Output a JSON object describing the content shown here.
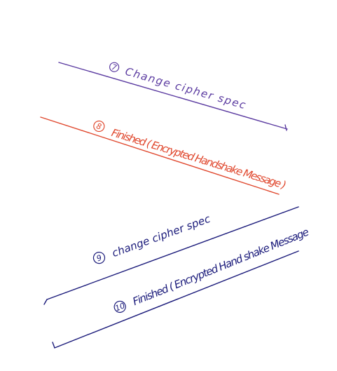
{
  "messages": [
    {
      "number": "7",
      "label": "Change cipher spec",
      "color": "#5a3aa0"
    },
    {
      "number": "8",
      "label": "Finished ( Encrypted Handshake Message )",
      "color": "#e0482e"
    },
    {
      "number": "9",
      "label": "change cipher spec",
      "color": "#1a1a7a"
    },
    {
      "number": "10",
      "label": "Finished ( Encrypted Hand shake Message",
      "color": "#1a1a7a"
    }
  ]
}
